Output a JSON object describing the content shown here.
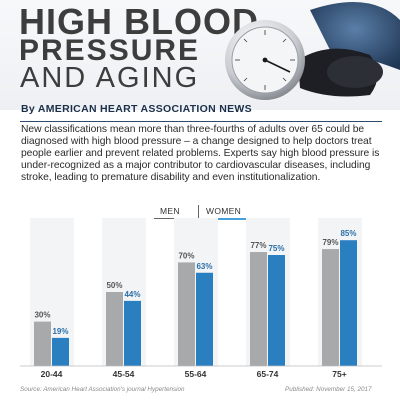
{
  "header": {
    "title_line1": "HIGH BLOOD",
    "title_line2": "PRESSURE",
    "title_line3": "AND AGING"
  },
  "byline": "By AMERICAN HEART ASSOCIATION NEWS",
  "intro": "New classifications mean more than three-fourths of adults over 65 could be diagnosed with high blood pressure – a change designed to help doctors treat people earlier and prevent related problems. Experts say high blood pressure is under-recognized as a major contributor to cardiovascular diseases, including stroke, leading to premature disability and even institutionalization.",
  "legend": {
    "men": "MEN",
    "women": "WOMEN"
  },
  "footer": {
    "source": "Source: American Heart Association's journal Hypertension",
    "published": "Published: November 15, 2017"
  },
  "colors": {
    "men": "#a8a9ab",
    "women": "#2a7fc1",
    "title": "#3d3d3d",
    "accent": "#2e4a6f"
  },
  "chart_data": {
    "type": "bar",
    "categories": [
      "20-44",
      "45-54",
      "55-64",
      "65-74",
      "75+"
    ],
    "series": [
      {
        "name": "MEN",
        "values": [
          30,
          50,
          70,
          77,
          79
        ],
        "labels": [
          "30%",
          "50%",
          "70%",
          "77%",
          "79%"
        ]
      },
      {
        "name": "WOMEN",
        "values": [
          19,
          44,
          63,
          75,
          85
        ],
        "labels": [
          "19%",
          "44%",
          "63%",
          "75%",
          "85%"
        ]
      }
    ],
    "ylim": [
      0,
      100
    ],
    "grid": false,
    "legend_position": "top-center"
  }
}
